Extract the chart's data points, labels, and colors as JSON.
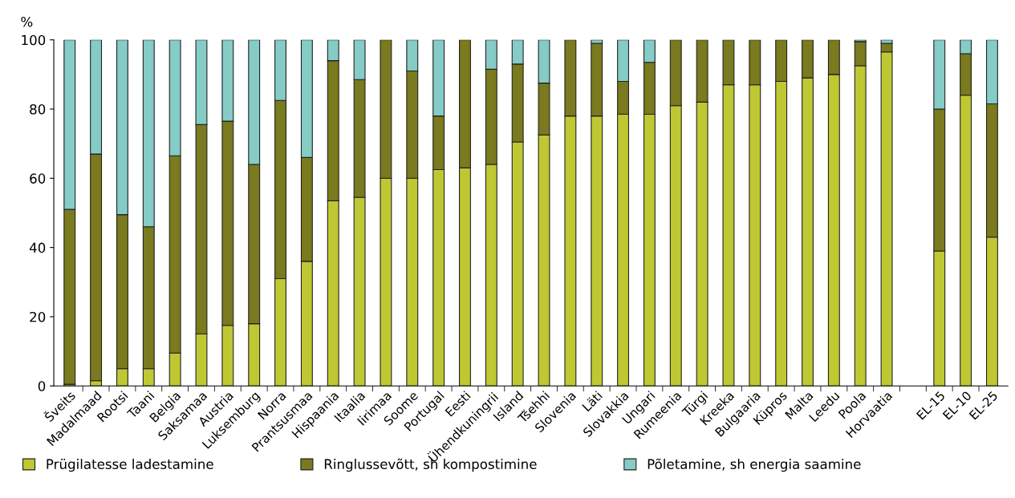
{
  "chart_data": {
    "type": "bar",
    "stacked": true,
    "ylabel": "%",
    "categories": [
      "Šveits",
      "Madalmaad",
      "Rootsi",
      "Taani",
      "Belgia",
      "Saksamaa",
      "Austria",
      "Luksemburg",
      "Norra",
      "Prantsusmaa",
      "Hispaania",
      "Itaalia",
      "Iirimaa",
      "Soome",
      "Portugal",
      "Eesti",
      "Ühendkuningrii",
      "Island",
      "Tšehhi",
      "Slovenia",
      "Läti",
      "Slovakkia",
      "Ungari",
      "Rumeenia",
      "Türgi",
      "Kreeka",
      "Bulgaaria",
      "Küpros",
      "Malta",
      "Leedu",
      "Poola",
      "Horvaatia",
      null,
      "EL-15",
      "EL-10",
      "EL-25"
    ],
    "series": [
      {
        "name": "Prügilatesse ladestamine",
        "color": "#bfc832",
        "values": [
          0.5,
          1.5,
          5,
          5,
          9.5,
          15,
          17.5,
          18,
          31,
          36,
          53.5,
          54.5,
          60,
          60,
          62.5,
          63,
          64,
          70.5,
          72.5,
          78,
          78,
          78.5,
          78.5,
          81,
          82,
          87,
          87,
          88,
          89,
          90,
          92.5,
          96.5,
          null,
          39,
          84,
          43
        ]
      },
      {
        "name": "Ringlussevõtt, sh kompostimine",
        "color": "#7a7a1e",
        "values": [
          50.5,
          65.5,
          44.5,
          41,
          57,
          60.5,
          59,
          46,
          51.5,
          30,
          40.5,
          34,
          40,
          31,
          15.5,
          37,
          27.5,
          22.5,
          15,
          22,
          21,
          9.5,
          15,
          19,
          18,
          13,
          13,
          12,
          11,
          10,
          7,
          2.5,
          null,
          41,
          12,
          38.5
        ]
      },
      {
        "name": "Põletamine, sh energia saamine",
        "color": "#85cbc6",
        "values": [
          49,
          33,
          50.5,
          54,
          33.5,
          24.5,
          23.5,
          36,
          17.5,
          34,
          6,
          11.5,
          0,
          9,
          22,
          0,
          8.5,
          7,
          12.5,
          0,
          1,
          12,
          6.5,
          0,
          0,
          0,
          0,
          0,
          0,
          0,
          0.5,
          1,
          null,
          20,
          4,
          18.5
        ]
      }
    ],
    "ylim": [
      0,
      100
    ],
    "yticks": [
      0,
      20,
      40,
      60,
      80,
      100
    ],
    "grid": false,
    "legend": "bottom"
  }
}
